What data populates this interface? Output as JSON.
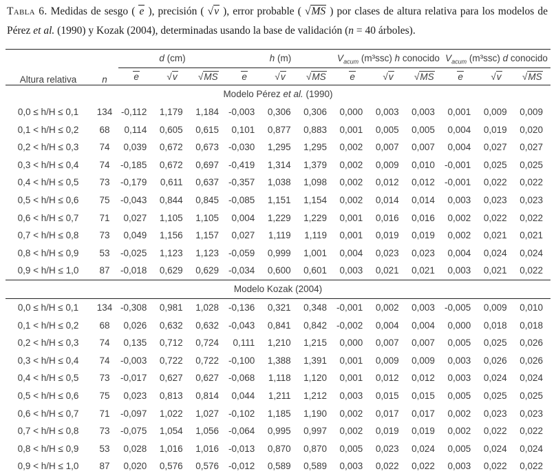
{
  "caption": {
    "label": "Tabla 6.",
    "seg1": " Medidas de sesgo ( ",
    "m1": "e",
    "seg2": " ), precisión ( ",
    "sqrt": "√",
    "m2": "v",
    "seg3": " ), error probable ( ",
    "m3": "MS",
    "seg4": " ) por clases de altura relativa para los modelos de Pérez ",
    "etal": "et al.",
    "seg5": " (1990) y Kozak (2004), determinadas usando la base de validación (",
    "nvar": "n",
    "seg6": " = 40 árboles)."
  },
  "table": {
    "col_class_header": "Altura relativa",
    "col_n_header": "n",
    "groups": [
      {
        "v1": "d",
        "sub": "",
        "mid": " (cm)",
        "v2": "",
        "tail": ""
      },
      {
        "v1": "h",
        "sub": "",
        "mid": " (m)",
        "v2": "",
        "tail": ""
      },
      {
        "v1": "V",
        "sub": "acum",
        "mid": " (m³ssc) ",
        "v2": "h",
        "tail": " conocido"
      },
      {
        "v1": "V",
        "sub": "acum",
        "mid": " (m³ssc) ",
        "v2": "d",
        "tail": " conocido"
      }
    ],
    "subcols": [
      {
        "sign": "",
        "var": "e"
      },
      {
        "sign": "√",
        "var": "v"
      },
      {
        "sign": "√",
        "var": "MS"
      }
    ],
    "sections": [
      {
        "title_pre": "Modelo Pérez ",
        "title_italic": "et al.",
        "title_post": " (1990)",
        "rows": [
          [
            "0,0 ≤ h/H ≤ 0,1",
            "134",
            "-0,112",
            "1,179",
            "1,184",
            "-0,003",
            "0,306",
            "0,306",
            "0,000",
            "0,003",
            "0,003",
            "0,001",
            "0,009",
            "0,009"
          ],
          [
            "0,1 < h/H ≤ 0,2",
            "68",
            "0,114",
            "0,605",
            "0,615",
            "0,101",
            "0,877",
            "0,883",
            "0,001",
            "0,005",
            "0,005",
            "0,004",
            "0,019",
            "0,020"
          ],
          [
            "0,2 < h/H ≤ 0,3",
            "74",
            "0,039",
            "0,672",
            "0,673",
            "-0,030",
            "1,295",
            "1,295",
            "0,002",
            "0,007",
            "0,007",
            "0,004",
            "0,027",
            "0,027"
          ],
          [
            "0,3 < h/H ≤ 0,4",
            "74",
            "-0,185",
            "0,672",
            "0,697",
            "-0,419",
            "1,314",
            "1,379",
            "0,002",
            "0,009",
            "0,010",
            "-0,001",
            "0,025",
            "0,025"
          ],
          [
            "0,4 < h/H ≤ 0,5",
            "73",
            "-0,179",
            "0,611",
            "0,637",
            "-0,357",
            "1,038",
            "1,098",
            "0,002",
            "0,012",
            "0,012",
            "-0,001",
            "0,022",
            "0,022"
          ],
          [
            "0,5 < h/H ≤ 0,6",
            "75",
            "-0,043",
            "0,844",
            "0,845",
            "-0,085",
            "1,151",
            "1,154",
            "0,002",
            "0,014",
            "0,014",
            "0,003",
            "0,023",
            "0,023"
          ],
          [
            "0,6 < h/H ≤ 0,7",
            "71",
            "0,027",
            "1,105",
            "1,105",
            "0,004",
            "1,229",
            "1,229",
            "0,001",
            "0,016",
            "0,016",
            "0,002",
            "0,022",
            "0,022"
          ],
          [
            "0,7 < h/H ≤ 0,8",
            "73",
            "0,049",
            "1,156",
            "1,157",
            "0,027",
            "1,119",
            "1,119",
            "0,001",
            "0,019",
            "0,019",
            "0,002",
            "0,021",
            "0,021"
          ],
          [
            "0,8 < h/H ≤ 0,9",
            "53",
            "-0,025",
            "1,123",
            "1,123",
            "-0,059",
            "0,999",
            "1,001",
            "0,004",
            "0,023",
            "0,023",
            "0,004",
            "0,024",
            "0,024"
          ],
          [
            "0,9 < h/H ≤ 1,0",
            "87",
            "-0,018",
            "0,629",
            "0,629",
            "-0,034",
            "0,600",
            "0,601",
            "0,003",
            "0,021",
            "0,021",
            "0,003",
            "0,021",
            "0,022"
          ]
        ]
      },
      {
        "title_pre": "Modelo Kozak (2004)",
        "title_italic": "",
        "title_post": "",
        "rows": [
          [
            "0,0 ≤ h/H ≤ 0,1",
            "134",
            "-0,308",
            "0,981",
            "1,028",
            "-0,136",
            "0,321",
            "0,348",
            "-0,001",
            "0,002",
            "0,003",
            "-0,005",
            "0,009",
            "0,010"
          ],
          [
            "0,1 < h/H ≤ 0,2",
            "68",
            "0,026",
            "0,632",
            "0,632",
            "-0,043",
            "0,841",
            "0,842",
            "-0,002",
            "0,004",
            "0,004",
            "0,000",
            "0,018",
            "0,018"
          ],
          [
            "0,2 < h/H ≤ 0,3",
            "74",
            "0,135",
            "0,712",
            "0,724",
            "0,111",
            "1,210",
            "1,215",
            "0,000",
            "0,007",
            "0,007",
            "0,005",
            "0,025",
            "0,026"
          ],
          [
            "0,3 < h/H ≤ 0,4",
            "74",
            "-0,003",
            "0,722",
            "0,722",
            "-0,100",
            "1,388",
            "1,391",
            "0,001",
            "0,009",
            "0,009",
            "0,003",
            "0,026",
            "0,026"
          ],
          [
            "0,4 < h/H ≤ 0,5",
            "73",
            "-0,017",
            "0,627",
            "0,627",
            "-0,068",
            "1,118",
            "1,120",
            "0,001",
            "0,012",
            "0,012",
            "0,003",
            "0,024",
            "0,024"
          ],
          [
            "0,5 < h/H ≤ 0,6",
            "75",
            "0,023",
            "0,813",
            "0,814",
            "0,044",
            "1,211",
            "1,212",
            "0,003",
            "0,015",
            "0,015",
            "0,005",
            "0,025",
            "0,025"
          ],
          [
            "0,6 < h/H ≤ 0,7",
            "71",
            "-0,097",
            "1,022",
            "1,027",
            "-0,102",
            "1,185",
            "1,190",
            "0,002",
            "0,017",
            "0,017",
            "0,002",
            "0,023",
            "0,023"
          ],
          [
            "0,7 < h/H ≤ 0,8",
            "73",
            "-0,075",
            "1,054",
            "1,056",
            "-0,064",
            "0,995",
            "0,997",
            "0,002",
            "0,019",
            "0,019",
            "0,002",
            "0,022",
            "0,022"
          ],
          [
            "0,8 < h/H ≤ 0,9",
            "53",
            "0,028",
            "1,016",
            "1,016",
            "-0,013",
            "0,870",
            "0,870",
            "0,005",
            "0,023",
            "0,024",
            "0,005",
            "0,024",
            "0,024"
          ],
          [
            "0,9 < h/H ≤ 1,0",
            "87",
            "0,020",
            "0,576",
            "0,576",
            "-0,012",
            "0,589",
            "0,589",
            "0,003",
            "0,022",
            "0,022",
            "0,003",
            "0,022",
            "0,022"
          ]
        ]
      }
    ]
  }
}
